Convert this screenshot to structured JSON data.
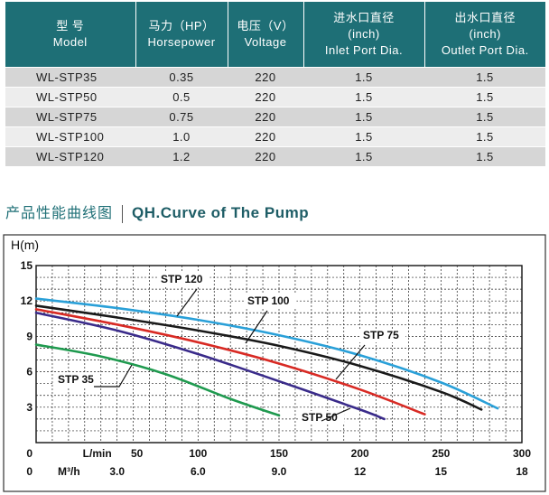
{
  "table": {
    "headers": [
      {
        "cn": "型  号",
        "en": "Model"
      },
      {
        "cn": "马力（HP）",
        "en": "Horsepower"
      },
      {
        "cn": "电压（V）",
        "en": "Voltage"
      },
      {
        "cn": "进水口直径",
        "en": "(inch)",
        "en2": "Inlet Port Dia."
      },
      {
        "cn": "出水口直径",
        "en": "(inch)",
        "en2": "Outlet Port Dia."
      }
    ],
    "rows": [
      [
        "WL-STP35",
        "0.35",
        "220",
        "1.5",
        "1.5"
      ],
      [
        "WL-STP50",
        "0.5",
        "220",
        "1.5",
        "1.5"
      ],
      [
        "WL-STP75",
        "0.75",
        "220",
        "1.5",
        "1.5"
      ],
      [
        "WL-STP100",
        "1.0",
        "220",
        "1.5",
        "1.5"
      ],
      [
        "WL-STP120",
        "1.2",
        "220",
        "1.5",
        "1.5"
      ]
    ]
  },
  "section": {
    "title_cn": "产品性能曲线图",
    "title_en": "QH.Curve of The Pump"
  },
  "chart_data": {
    "type": "line",
    "ylabel": "H(m)",
    "xlabel": "L/min",
    "x2label": "M³/h",
    "ylim": [
      0,
      15
    ],
    "yticks": [
      "0",
      "3",
      "6",
      "9",
      "12",
      "15"
    ],
    "xlim": [
      0,
      300
    ],
    "xticks": [
      "0",
      "50",
      "100",
      "150",
      "200",
      "250",
      "300"
    ],
    "x2ticks": [
      "0",
      "3.0",
      "6.0",
      "9.0",
      "12",
      "15",
      "18"
    ],
    "grid": true,
    "series": [
      {
        "name": "STP 35",
        "color": "#1f9a4f",
        "x": [
          0,
          40,
          80,
          120,
          150
        ],
        "y": [
          8.3,
          7.3,
          5.8,
          3.7,
          2.3
        ]
      },
      {
        "name": "STP 50",
        "color": "#3a2b8a",
        "x": [
          0,
          50,
          100,
          150,
          200,
          215
        ],
        "y": [
          11.0,
          9.5,
          7.5,
          5.2,
          2.8,
          2.0
        ]
      },
      {
        "name": "STP 75",
        "color": "#d82a24",
        "x": [
          0,
          50,
          100,
          150,
          200,
          240
        ],
        "y": [
          11.3,
          10.0,
          8.5,
          6.7,
          4.5,
          2.4
        ]
      },
      {
        "name": "STP 100",
        "color": "#1a1a1a",
        "x": [
          0,
          50,
          100,
          150,
          200,
          250,
          275
        ],
        "y": [
          11.6,
          10.6,
          9.5,
          8.2,
          6.5,
          4.3,
          2.8
        ]
      },
      {
        "name": "STP 120",
        "color": "#2aa0d8",
        "x": [
          0,
          50,
          100,
          150,
          200,
          250,
          285
        ],
        "y": [
          12.2,
          11.4,
          10.4,
          9.1,
          7.4,
          5.1,
          2.9
        ]
      }
    ],
    "annotations": [
      "STP 120",
      "STP 100",
      "STP 75",
      "STP 50",
      "STP 35"
    ]
  }
}
